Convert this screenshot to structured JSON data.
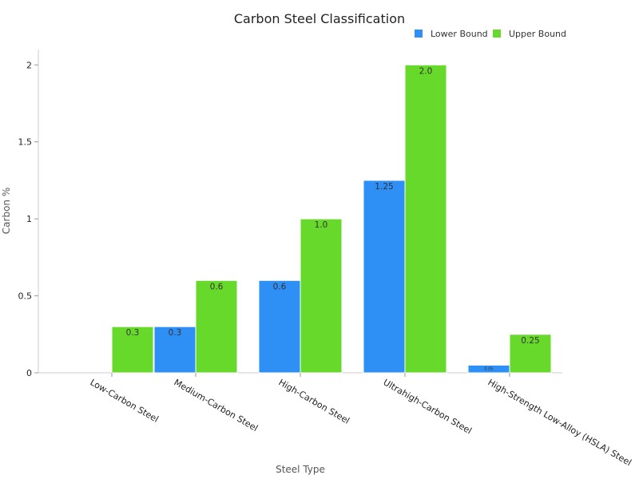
{
  "chart_data": {
    "type": "bar",
    "title": "Carbon Steel Classification",
    "xlabel": "Steel Type",
    "ylabel": "Carbon %",
    "categories": [
      "Low-Carbon Steel",
      "Medium-Carbon Steel",
      "High-Carbon Steel",
      "Ultrahigh-Carbon Steel",
      "High-Strength Low-Alloy (HSLA) Steel"
    ],
    "series": [
      {
        "name": "Lower Bound",
        "color": "#2e8ff5",
        "values": [
          0,
          0.3,
          0.6,
          1.25,
          0.05
        ],
        "labels": [
          "",
          "0.3",
          "0.6",
          "1.25",
          "0.05"
        ]
      },
      {
        "name": "Upper Bound",
        "color": "#66d92a",
        "values": [
          0.3,
          0.6,
          1.0,
          2.0,
          0.25
        ],
        "labels": [
          "0.3",
          "0.6",
          "1.0",
          "2.0",
          "0.25"
        ]
      }
    ],
    "ylim": [
      0,
      2.1
    ],
    "yticks": [
      0,
      0.5,
      1,
      1.5,
      2
    ],
    "ytick_labels": [
      "0",
      "0.5",
      "1",
      "1.5",
      "2"
    ],
    "grid": false,
    "legend_position": "top-right"
  }
}
